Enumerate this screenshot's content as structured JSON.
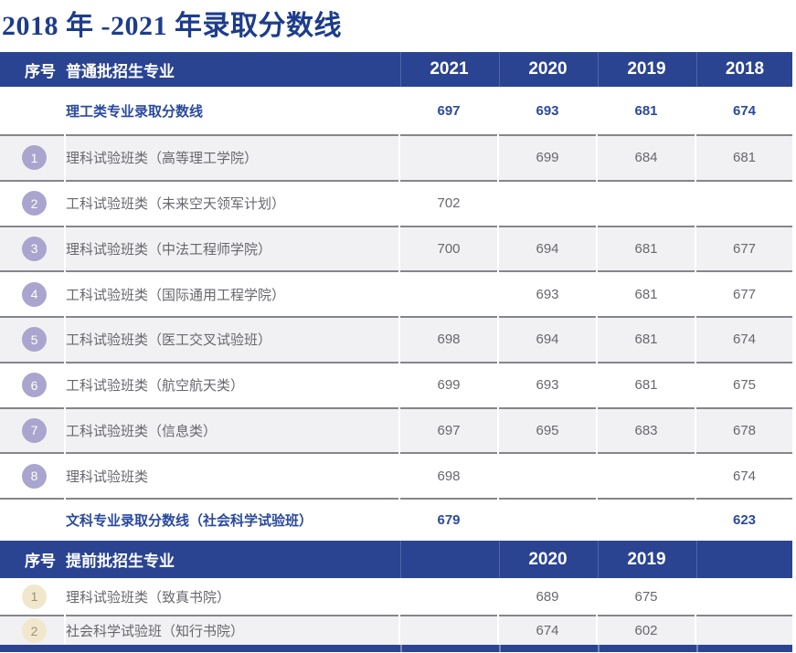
{
  "page_title": "2018 年 -2021 年录取分数线",
  "colors": {
    "header_blue": "#2a4492",
    "title_navy": "#1d3c8c",
    "accent_blue": "#2b4a9e",
    "stripe_gray": "#f1f1f3",
    "separator_gray": "#85858d",
    "badge_purple": "#a9a5ce",
    "badge_tan": "#f0e7cc"
  },
  "table1": {
    "header": {
      "col_index": "序号",
      "col_major": "普通批招生专业",
      "years": [
        "2021",
        "2020",
        "2019",
        "2018"
      ]
    },
    "summary_row": {
      "label": "理工类专业录取分数线",
      "values": [
        "697",
        "693",
        "681",
        "674"
      ]
    },
    "rows": [
      {
        "index": "1",
        "major": "理科试验班类（高等理工学院）",
        "values": [
          "",
          "699",
          "684",
          "681"
        ]
      },
      {
        "index": "2",
        "major": "工科试验班类（未来空天领军计划）",
        "values": [
          "702",
          "",
          "",
          ""
        ]
      },
      {
        "index": "3",
        "major": "理科试验班类（中法工程师学院）",
        "values": [
          "700",
          "694",
          "681",
          "677"
        ]
      },
      {
        "index": "4",
        "major": "工科试验班类（国际通用工程学院）",
        "values": [
          "",
          "693",
          "681",
          "677"
        ]
      },
      {
        "index": "5",
        "major": "工科试验班类（医工交叉试验班）",
        "values": [
          "698",
          "694",
          "681",
          "674"
        ]
      },
      {
        "index": "6",
        "major": "工科试验班类（航空航天类）",
        "values": [
          "699",
          "693",
          "681",
          "675"
        ]
      },
      {
        "index": "7",
        "major": "工科试验班类（信息类）",
        "values": [
          "697",
          "695",
          "683",
          "678"
        ]
      },
      {
        "index": "8",
        "major": "理科试验班类",
        "values": [
          "698",
          "",
          "",
          "674"
        ]
      }
    ],
    "liberal_row": {
      "label": "文科专业录取分数线（社会科学试验班）",
      "values": [
        "679",
        "",
        "",
        "623"
      ]
    }
  },
  "table2": {
    "header": {
      "col_index": "序号",
      "col_major": "提前批招生专业",
      "years": [
        "",
        "2020",
        "2019",
        ""
      ]
    },
    "rows": [
      {
        "index": "1",
        "major": "理科试验班类（致真书院）",
        "values": [
          "",
          "689",
          "675",
          ""
        ]
      },
      {
        "index": "2",
        "major": "社会科学试验班（知行书院）",
        "values": [
          "",
          "674",
          "602",
          ""
        ]
      }
    ]
  }
}
